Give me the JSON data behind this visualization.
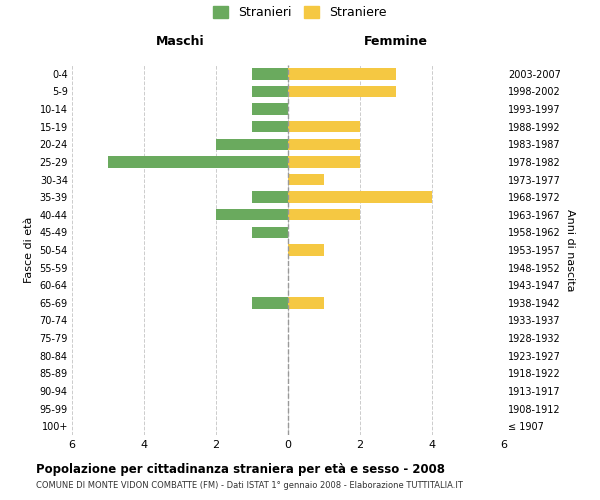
{
  "age_groups": [
    "100+",
    "95-99",
    "90-94",
    "85-89",
    "80-84",
    "75-79",
    "70-74",
    "65-69",
    "60-64",
    "55-59",
    "50-54",
    "45-49",
    "40-44",
    "35-39",
    "30-34",
    "25-29",
    "20-24",
    "15-19",
    "10-14",
    "5-9",
    "0-4"
  ],
  "birth_years": [
    "≤ 1907",
    "1908-1912",
    "1913-1917",
    "1918-1922",
    "1923-1927",
    "1928-1932",
    "1933-1937",
    "1938-1942",
    "1943-1947",
    "1948-1952",
    "1953-1957",
    "1958-1962",
    "1963-1967",
    "1968-1972",
    "1973-1977",
    "1978-1982",
    "1983-1987",
    "1988-1992",
    "1993-1997",
    "1998-2002",
    "2003-2007"
  ],
  "maschi": [
    0,
    0,
    0,
    0,
    0,
    0,
    0,
    1,
    0,
    0,
    0,
    1,
    2,
    1,
    0,
    5,
    2,
    1,
    1,
    1,
    1
  ],
  "femmine": [
    0,
    0,
    0,
    0,
    0,
    0,
    0,
    1,
    0,
    0,
    1,
    0,
    2,
    4,
    1,
    2,
    2,
    2,
    0,
    3,
    3
  ],
  "color_maschi": "#6aaa5e",
  "color_femmine": "#f5c842",
  "title_main": "Popolazione per cittadinanza straniera per età e sesso - 2008",
  "title_sub": "COMUNE DI MONTE VIDON COMBATTE (FM) - Dati ISTAT 1° gennaio 2008 - Elaborazione TUTTITALIA.IT",
  "label_maschi": "Stranieri",
  "label_femmine": "Straniere",
  "xlabel_left": "Maschi",
  "xlabel_right": "Femmine",
  "ylabel_left": "Fasce di età",
  "ylabel_right": "Anni di nascita",
  "xlim": 6,
  "background_color": "#ffffff",
  "grid_color": "#cccccc"
}
